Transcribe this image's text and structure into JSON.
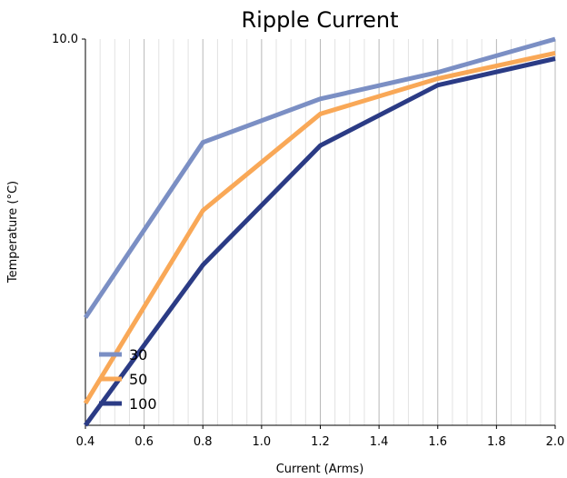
{
  "chart_data": {
    "type": "line",
    "title": "Ripple Current",
    "xlabel": "Current (Arms)",
    "ylabel": "Temperature (°C)",
    "xlim": [
      0.4,
      2.0
    ],
    "x_ticks": [
      "0.4",
      "0.6",
      "0.8",
      "1.0",
      "1.2",
      "1.4",
      "1.6",
      "1.8",
      "2.0"
    ],
    "y_scale": "log",
    "ylim": [
      1.0,
      10.0
    ],
    "y_tick_labels": [
      "10.0"
    ],
    "grid": "vertical",
    "legend_position": "bottom-left",
    "x": [
      0.4,
      0.8,
      1.2,
      1.6,
      2.0
    ],
    "series": [
      {
        "name": "30",
        "color": "#7b8fc4",
        "values": [
          1.9,
          5.4,
          7.0,
          8.2,
          10.0
        ]
      },
      {
        "name": "50",
        "color": "#f9a857",
        "values": [
          1.14,
          3.6,
          6.4,
          7.9,
          9.2
        ]
      },
      {
        "name": "100",
        "color": "#2b3b85",
        "values": [
          1.0,
          2.6,
          5.3,
          7.6,
          8.9
        ]
      }
    ]
  }
}
